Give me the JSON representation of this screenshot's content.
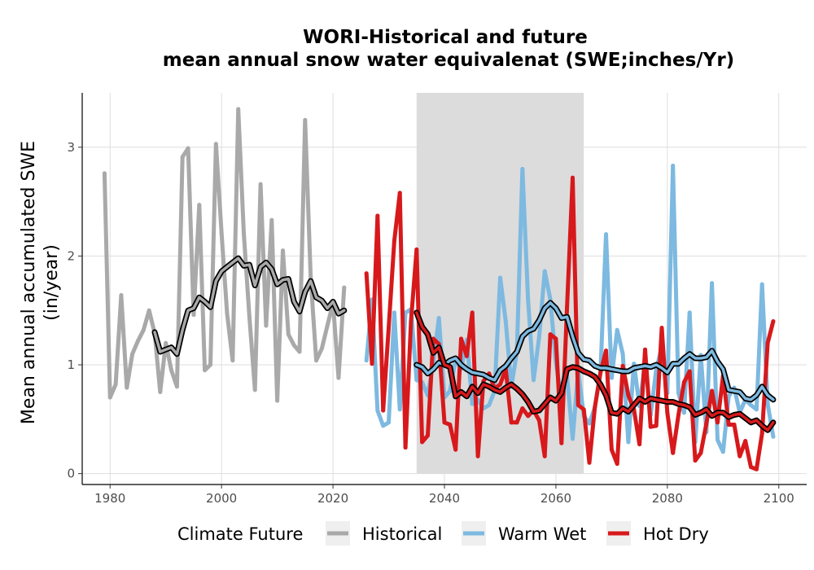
{
  "chart_data": {
    "type": "line",
    "title": "WORI-Historical and future",
    "subtitle": "mean annual snow water equivalenat (SWE;inches/Yr)",
    "xlabel": "",
    "ylabel": "Mean annual accumulated SWE",
    "ylabel_line2": "(in/year)",
    "xlim": [
      1975,
      2105
    ],
    "ylim": [
      -0.1,
      3.5
    ],
    "x_ticks": [
      1980,
      2000,
      2020,
      2040,
      2060,
      2080,
      2100
    ],
    "y_ticks": [
      0,
      1,
      2,
      3
    ],
    "grid": true,
    "shaded_period": [
      2035,
      2065
    ],
    "legend": {
      "title": "Climate Future",
      "position": "bottom",
      "entries": [
        {
          "label": "Historical",
          "color": "#A9A9A9"
        },
        {
          "label": "Warm Wet",
          "color": "#7DB9E0"
        },
        {
          "label": "Hot Dry",
          "color": "#D7191C"
        }
      ]
    },
    "series": [
      {
        "name": "Historical",
        "color": "#A9A9A9",
        "x": [
          1979,
          1980,
          1981,
          1982,
          1983,
          1984,
          1985,
          1986,
          1987,
          1988,
          1989,
          1990,
          1991,
          1992,
          1993,
          1994,
          1995,
          1996,
          1997,
          1998,
          1999,
          2000,
          2001,
          2002,
          2003,
          2004,
          2005,
          2006,
          2007,
          2008,
          2009,
          2010,
          2011,
          2012,
          2013,
          2014,
          2015,
          2016,
          2017,
          2018,
          2019,
          2020,
          2021,
          2022
        ],
        "values": [
          2.76,
          0.7,
          0.82,
          1.64,
          0.79,
          1.1,
          1.22,
          1.32,
          1.5,
          1.29,
          0.75,
          1.2,
          0.95,
          0.8,
          2.91,
          2.99,
          1.46,
          2.47,
          0.95,
          1.0,
          3.03,
          2.21,
          1.47,
          1.04,
          3.35,
          2.21,
          1.44,
          0.77,
          2.66,
          1.36,
          2.33,
          0.67,
          2.05,
          1.28,
          1.18,
          1.12,
          3.25,
          1.8,
          1.04,
          1.15,
          1.36,
          1.57,
          0.88,
          1.71
        ]
      },
      {
        "name": "Historical 10-yr rolling mean",
        "color": "#A9A9A9",
        "x": [
          1988,
          1989,
          1990,
          1991,
          1992,
          1993,
          1994,
          1995,
          1996,
          1997,
          1998,
          1999,
          2000,
          2001,
          2002,
          2003,
          2004,
          2005,
          2006,
          2007,
          2008,
          2009,
          2010,
          2011,
          2012,
          2013,
          2014,
          2015,
          2016,
          2017,
          2018,
          2019,
          2020,
          2021,
          2022
        ],
        "values": [
          1.3,
          1.12,
          1.14,
          1.16,
          1.1,
          1.32,
          1.5,
          1.52,
          1.62,
          1.58,
          1.53,
          1.77,
          1.86,
          1.9,
          1.94,
          1.98,
          1.91,
          1.92,
          1.73,
          1.9,
          1.94,
          1.88,
          1.74,
          1.78,
          1.79,
          1.58,
          1.49,
          1.67,
          1.77,
          1.62,
          1.59,
          1.52,
          1.58,
          1.47,
          1.5
        ]
      },
      {
        "name": "Warm Wet",
        "color": "#7DB9E0",
        "x": [
          2026,
          2027,
          2028,
          2029,
          2030,
          2031,
          2032,
          2033,
          2034,
          2035,
          2036,
          2037,
          2038,
          2039,
          2040,
          2041,
          2042,
          2043,
          2044,
          2045,
          2046,
          2047,
          2048,
          2049,
          2050,
          2051,
          2052,
          2053,
          2054,
          2055,
          2056,
          2057,
          2058,
          2059,
          2060,
          2061,
          2062,
          2063,
          2064,
          2065,
          2066,
          2067,
          2068,
          2069,
          2070,
          2071,
          2072,
          2073,
          2074,
          2075,
          2076,
          2077,
          2078,
          2079,
          2080,
          2081,
          2082,
          2083,
          2084,
          2085,
          2086,
          2087,
          2088,
          2089,
          2090,
          2091,
          2092,
          2093,
          2094,
          2095,
          2096,
          2097,
          2098,
          2099
        ],
        "values": [
          1.04,
          1.6,
          0.58,
          0.44,
          0.47,
          1.48,
          0.59,
          1.48,
          1.51,
          0.86,
          0.84,
          0.72,
          1.02,
          1.43,
          0.7,
          0.76,
          1.05,
          0.96,
          1.23,
          0.64,
          0.68,
          0.6,
          0.63,
          0.76,
          1.8,
          1.4,
          0.8,
          1.12,
          2.8,
          1.6,
          0.86,
          1.26,
          1.86,
          1.6,
          1.02,
          0.69,
          0.9,
          0.32,
          0.95,
          0.53,
          0.46,
          0.61,
          0.93,
          2.2,
          0.88,
          1.32,
          1.1,
          0.29,
          1.01,
          0.62,
          1.02,
          0.54,
          0.96,
          1.16,
          0.74,
          2.83,
          0.74,
          0.56,
          1.48,
          0.29,
          1.09,
          0.38,
          1.75,
          0.31,
          0.2,
          0.71,
          0.79,
          0.56,
          0.68,
          0.63,
          0.59,
          1.74,
          0.64,
          0.34
        ]
      },
      {
        "name": "Warm Wet 10-yr rolling mean",
        "color": "#7DB9E0",
        "x": [
          2035,
          2036,
          2037,
          2038,
          2039,
          2040,
          2041,
          2042,
          2043,
          2044,
          2045,
          2046,
          2047,
          2048,
          2049,
          2050,
          2051,
          2052,
          2053,
          2054,
          2055,
          2056,
          2057,
          2058,
          2059,
          2060,
          2061,
          2062,
          2063,
          2064,
          2065,
          2066,
          2067,
          2068,
          2069,
          2070,
          2071,
          2072,
          2073,
          2074,
          2075,
          2076,
          2077,
          2078,
          2079,
          2080,
          2081,
          2082,
          2083,
          2084,
          2085,
          2086,
          2087,
          2088,
          2089,
          2090,
          2091,
          2092,
          2093,
          2094,
          2095,
          2096,
          2097,
          2098,
          2099
        ],
        "values": [
          1.0,
          0.98,
          0.92,
          0.96,
          1.02,
          1.0,
          1.04,
          1.06,
          1.0,
          0.96,
          0.93,
          0.92,
          0.91,
          0.88,
          0.86,
          0.95,
          0.99,
          1.06,
          1.12,
          1.26,
          1.31,
          1.33,
          1.41,
          1.52,
          1.57,
          1.52,
          1.43,
          1.44,
          1.26,
          1.11,
          1.05,
          1.04,
          0.99,
          0.97,
          0.97,
          0.96,
          0.95,
          0.94,
          0.94,
          0.97,
          0.98,
          0.99,
          0.98,
          1.0,
          0.97,
          0.93,
          1.01,
          1.01,
          1.06,
          1.1,
          1.06,
          1.06,
          1.07,
          1.13,
          1.03,
          0.96,
          0.77,
          0.76,
          0.75,
          0.69,
          0.68,
          0.72,
          0.8,
          0.72,
          0.68
        ]
      },
      {
        "name": "Hot Dry",
        "color": "#D7191C",
        "x": [
          2026,
          2027,
          2028,
          2029,
          2030,
          2031,
          2032,
          2033,
          2034,
          2035,
          2036,
          2037,
          2038,
          2039,
          2040,
          2041,
          2042,
          2043,
          2044,
          2045,
          2046,
          2047,
          2048,
          2049,
          2050,
          2051,
          2052,
          2053,
          2054,
          2055,
          2056,
          2057,
          2058,
          2059,
          2060,
          2061,
          2062,
          2063,
          2064,
          2065,
          2066,
          2067,
          2068,
          2069,
          2070,
          2071,
          2072,
          2073,
          2074,
          2075,
          2076,
          2077,
          2078,
          2079,
          2080,
          2081,
          2082,
          2083,
          2084,
          2085,
          2086,
          2087,
          2088,
          2089,
          2090,
          2091,
          2092,
          2093,
          2094,
          2095,
          2096,
          2097,
          2098,
          2099
        ],
        "values": [
          1.84,
          1.01,
          2.37,
          0.58,
          1.34,
          2.14,
          2.58,
          0.24,
          1.4,
          2.06,
          0.29,
          0.35,
          1.24,
          1.19,
          0.47,
          0.45,
          0.22,
          1.24,
          1.08,
          1.48,
          0.16,
          0.85,
          0.92,
          0.78,
          0.82,
          0.96,
          0.47,
          0.47,
          0.6,
          0.53,
          0.58,
          0.49,
          0.16,
          1.28,
          1.24,
          0.28,
          1.53,
          2.72,
          0.63,
          0.59,
          0.1,
          0.61,
          0.93,
          1.13,
          0.22,
          0.09,
          0.99,
          0.72,
          0.59,
          0.27,
          1.14,
          0.43,
          0.44,
          1.34,
          0.56,
          0.19,
          0.54,
          0.84,
          0.94,
          0.12,
          0.19,
          0.46,
          0.76,
          0.47,
          0.9,
          0.45,
          0.45,
          0.16,
          0.3,
          0.06,
          0.04,
          0.37,
          1.2,
          1.4
        ]
      },
      {
        "name": "Hot Dry 10-yr rolling mean",
        "color": "#D7191C",
        "x": [
          2035,
          2036,
          2037,
          2038,
          2039,
          2040,
          2041,
          2042,
          2043,
          2044,
          2045,
          2046,
          2047,
          2048,
          2049,
          2050,
          2051,
          2052,
          2053,
          2054,
          2055,
          2056,
          2057,
          2058,
          2059,
          2060,
          2061,
          2062,
          2063,
          2064,
          2065,
          2066,
          2067,
          2068,
          2069,
          2070,
          2071,
          2072,
          2073,
          2074,
          2075,
          2076,
          2077,
          2078,
          2079,
          2080,
          2081,
          2082,
          2083,
          2084,
          2085,
          2086,
          2087,
          2088,
          2089,
          2090,
          2091,
          2092,
          2093,
          2094,
          2095,
          2096,
          2097,
          2098,
          2099
        ],
        "values": [
          1.48,
          1.35,
          1.28,
          1.11,
          1.16,
          1.0,
          0.98,
          0.71,
          0.75,
          0.71,
          0.8,
          0.74,
          0.82,
          0.8,
          0.77,
          0.75,
          0.79,
          0.82,
          0.78,
          0.73,
          0.66,
          0.57,
          0.58,
          0.64,
          0.7,
          0.67,
          0.74,
          0.96,
          0.98,
          0.97,
          0.94,
          0.92,
          0.89,
          0.82,
          0.72,
          0.56,
          0.55,
          0.6,
          0.57,
          0.63,
          0.69,
          0.66,
          0.69,
          0.68,
          0.67,
          0.66,
          0.66,
          0.64,
          0.63,
          0.61,
          0.54,
          0.56,
          0.59,
          0.53,
          0.56,
          0.56,
          0.52,
          0.54,
          0.55,
          0.51,
          0.47,
          0.49,
          0.44,
          0.4,
          0.47
        ]
      }
    ]
  }
}
